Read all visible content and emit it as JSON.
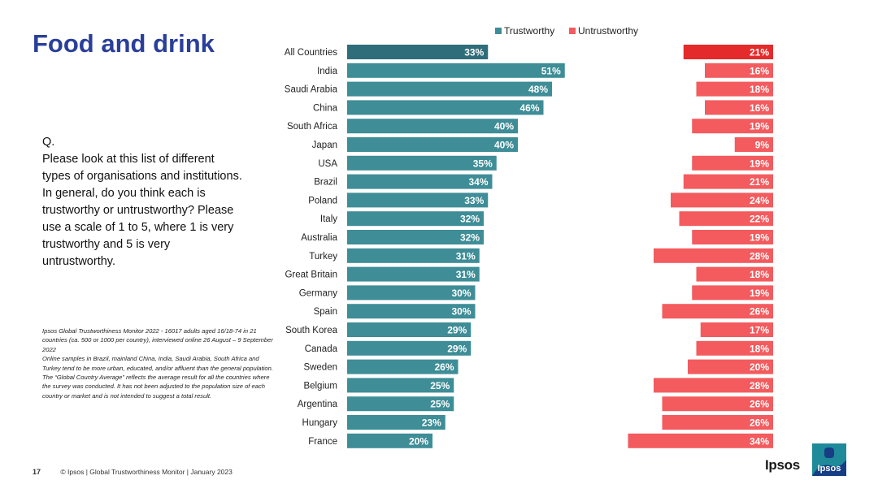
{
  "page": {
    "title": "Food and drink",
    "question_label": "Q.",
    "question_text": "Please look at this list of different types of organisations and institutions. In general, do you think each is trustworthy or untrustworthy? Please use a scale of 1 to 5, where 1 is very trustworthy and 5 is very untrustworthy.",
    "notes": [
      "Ipsos Global Trustworthiness Monitor 2022 - 16017 adults aged 16/18-74 in 21 countries (ca. 500 or 1000 per country), interviewed online 26 August – 9 September 2022",
      "Online samples in Brazil, mainland China, India, Saudi Arabia, South Africa and Turkey tend to be more urban, educated, and/or affluent than the general population.",
      "The “Global Country Average” reflects the average result for all the countries where the survey was conducted. It has not been adjusted to the population size of each country or market and is not intended to suggest a total result."
    ],
    "page_number": "17",
    "footer": "© Ipsos | Global Trustworthiness Monitor | January 2023",
    "logo_text": "Ipsos",
    "logo_badge_text": "Ipsos"
  },
  "chart_data": {
    "type": "bar",
    "orientation": "horizontal",
    "categories": [
      "All Countries",
      "India",
      "Saudi Arabia",
      "China",
      "South Africa",
      "Japan",
      "USA",
      "Brazil",
      "Poland",
      "Italy",
      "Australia",
      "Turkey",
      "Great Britain",
      "Germany",
      "Spain",
      "South Korea",
      "Canada",
      "Sweden",
      "Belgium",
      "Argentina",
      "Hungary",
      "France"
    ],
    "series": [
      {
        "name": "Trustworthy",
        "color": "#3e8d97",
        "highlight_color": "#2f6d7a",
        "values": [
          33,
          51,
          48,
          46,
          40,
          40,
          35,
          34,
          33,
          32,
          32,
          31,
          31,
          30,
          30,
          29,
          29,
          26,
          25,
          25,
          23,
          20
        ]
      },
      {
        "name": "Untrustworthy",
        "color": "#f35b5e",
        "highlight_color": "#e42a2a",
        "values": [
          21,
          16,
          18,
          16,
          19,
          9,
          19,
          21,
          24,
          22,
          19,
          28,
          18,
          19,
          26,
          17,
          18,
          20,
          28,
          26,
          26,
          34
        ]
      }
    ],
    "value_suffix": "%",
    "highlight_index": 0,
    "legend_position": "top",
    "grid": false
  }
}
